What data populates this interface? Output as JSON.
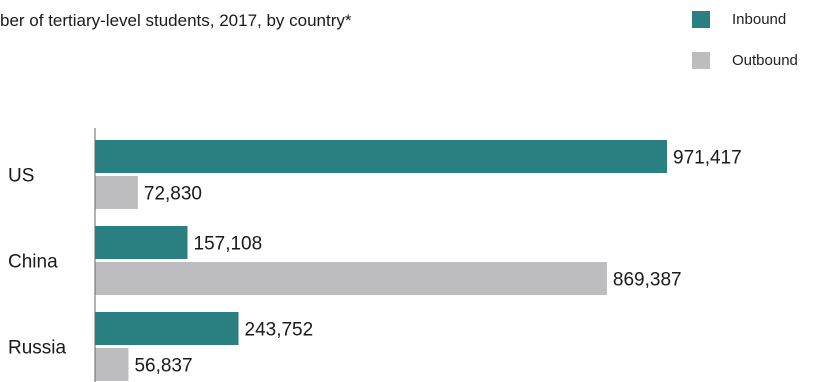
{
  "chart_data": {
    "type": "bar",
    "orientation": "horizontal",
    "title": "ber of tertiary-level students, 2017, by country*",
    "categories": [
      "US",
      "China",
      "Russia"
    ],
    "series": [
      {
        "name": "Inbound",
        "color": "#2a8080",
        "values": [
          971417,
          157108,
          243752
        ],
        "labels": [
          "971,417",
          "157,108",
          "243,752"
        ]
      },
      {
        "name": "Outbound",
        "color": "#bdbdbf",
        "values": [
          72830,
          869387,
          56837
        ],
        "labels": [
          "72,830",
          "869,387",
          "56,837"
        ]
      }
    ],
    "xlim": [
      0,
      971417
    ],
    "grid": false,
    "legend_position": "top-right"
  }
}
